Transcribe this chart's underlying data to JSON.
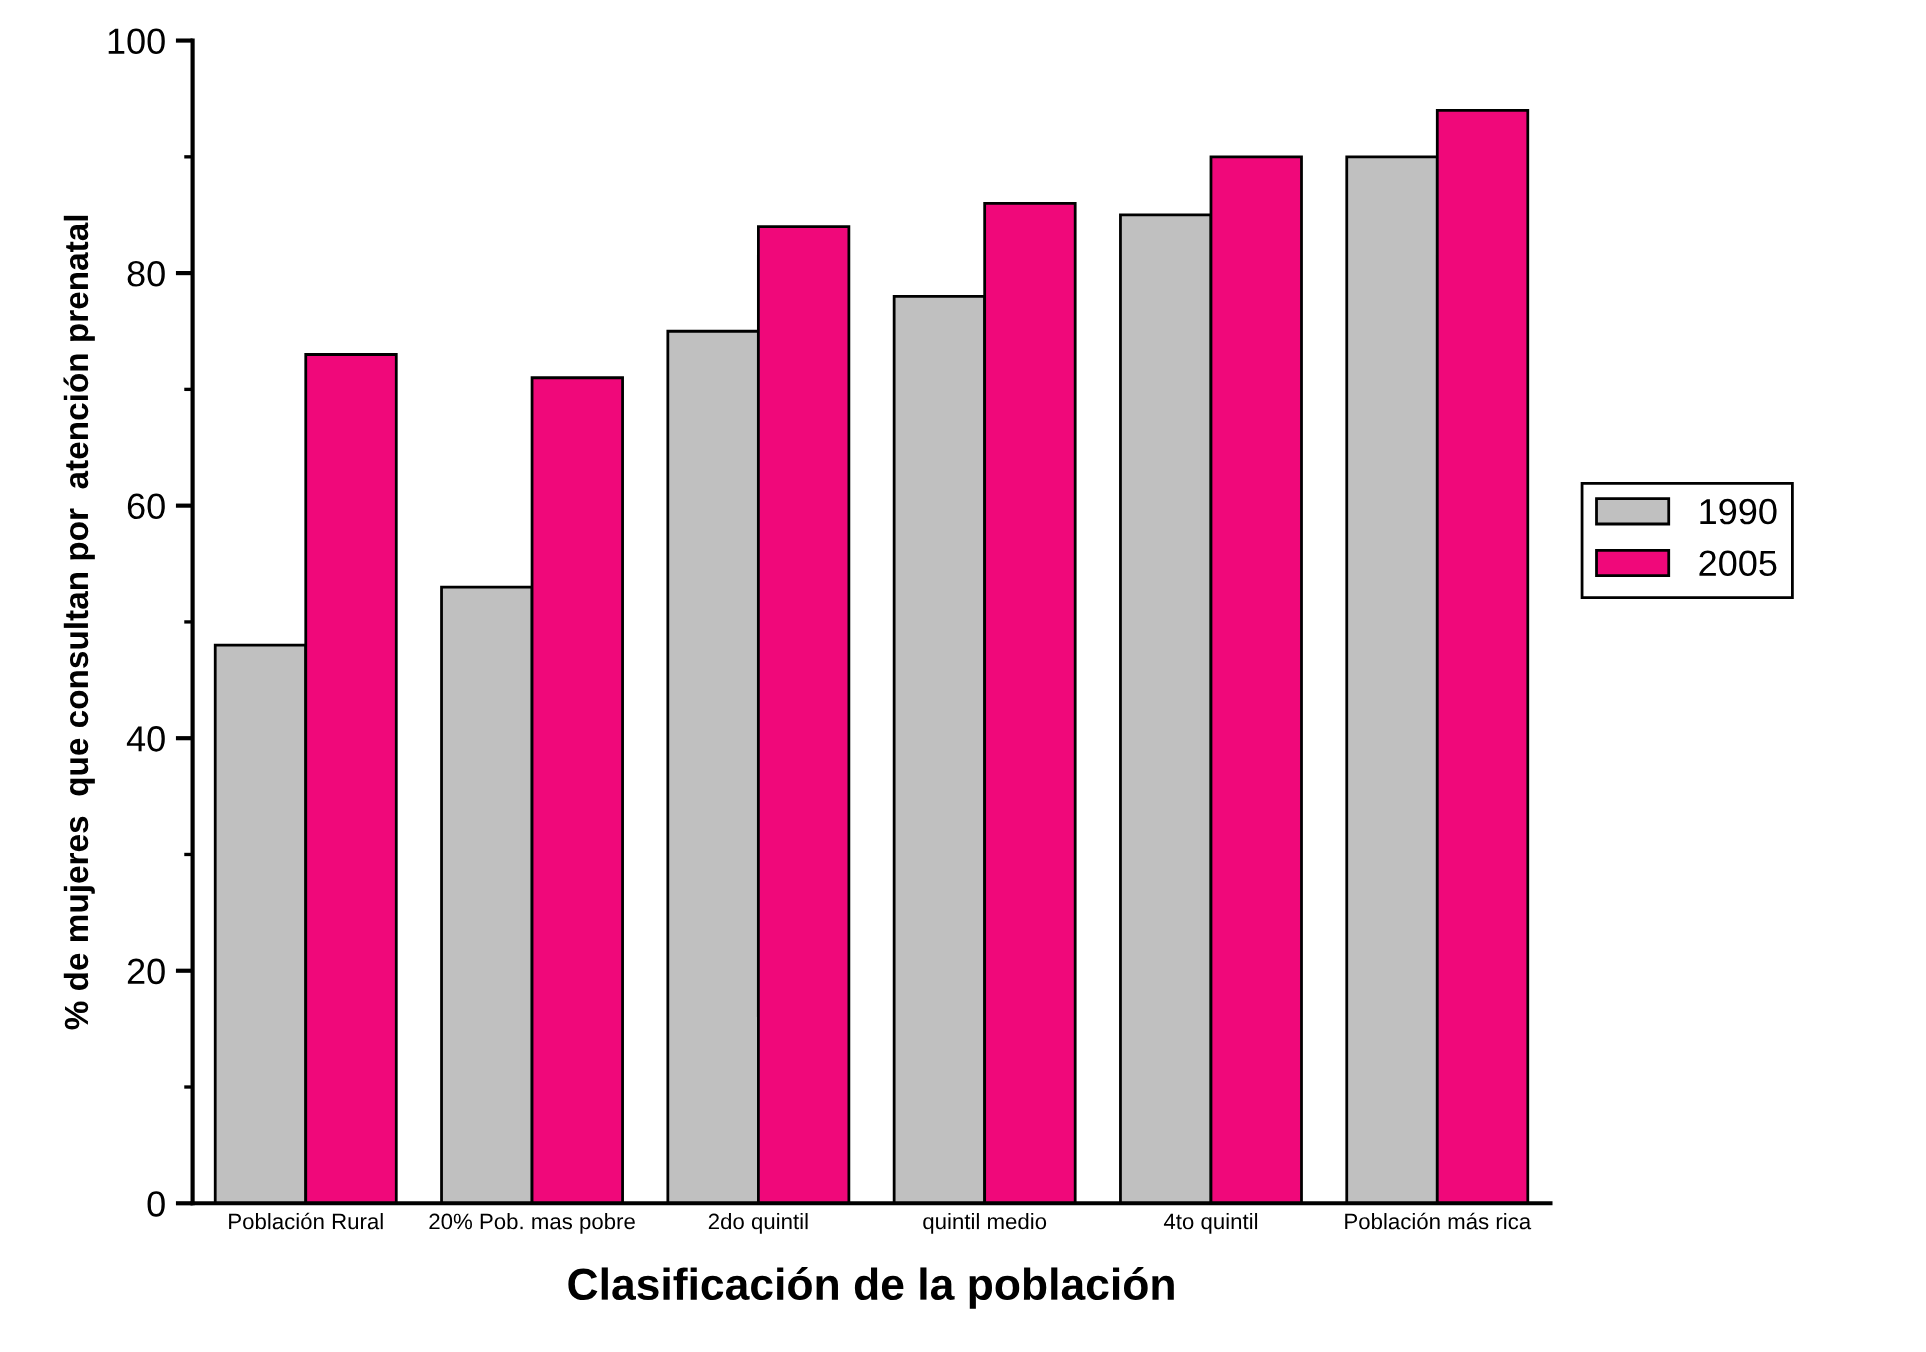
{
  "chart_data": {
    "type": "bar",
    "xlabel": "Clasificación de la población",
    "ylabel": "% de mujeres  que consultan por  atención prenatal",
    "categories": [
      "Población Rural",
      "20% Pob. mas pobre",
      "2do quintil",
      "quintil medio",
      "4to quintil",
      "Población más rica"
    ],
    "series": [
      {
        "name": "1990",
        "color": "#c0c0c0",
        "values": [
          48,
          53,
          75,
          78,
          85,
          90
        ]
      },
      {
        "name": "2005",
        "color": "#f0087a",
        "values": [
          73,
          71,
          84,
          86,
          90,
          94
        ]
      }
    ],
    "ylim": [
      0,
      100
    ],
    "yticks": [
      0,
      20,
      40,
      60,
      80,
      100
    ],
    "grid": false,
    "legend": "right"
  }
}
